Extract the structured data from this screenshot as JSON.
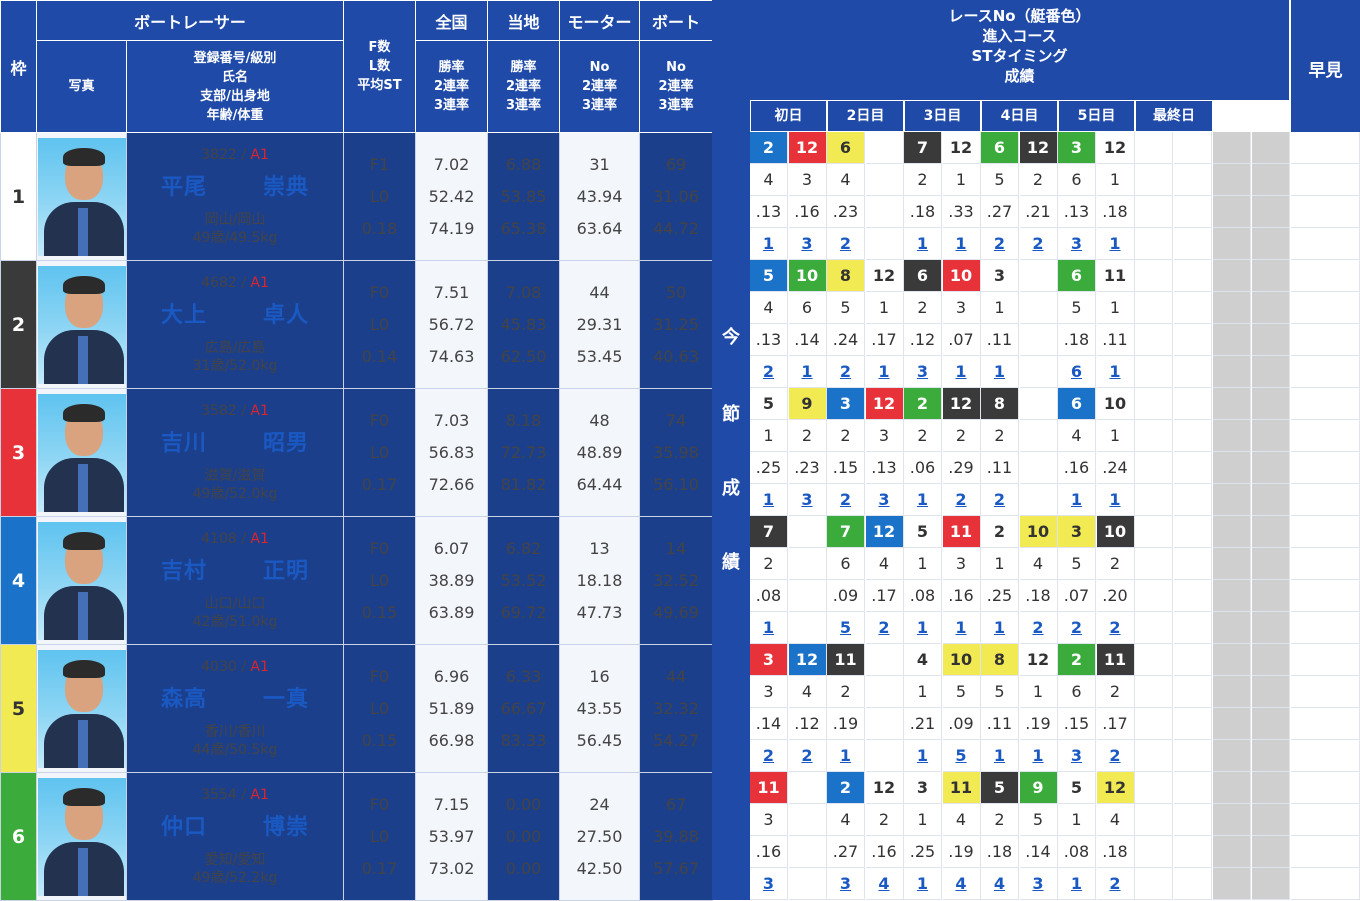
{
  "header": {
    "waku": "枠",
    "boatracer": "ボートレーサー",
    "photo": "写真",
    "info_lines": [
      "登録番号/級別",
      "氏名",
      "支部/出身地",
      "年齢/体重"
    ],
    "f_lines": [
      "F数",
      "L数",
      "平均ST"
    ],
    "zenkoku": "全国",
    "touchi": "当地",
    "motor": "モーター",
    "boat": "ボート",
    "rate_lines": [
      "勝率",
      "2連率",
      "3連率"
    ],
    "no_lines": [
      "No",
      "2連率",
      "3連率"
    ]
  },
  "side_label": [
    "今",
    "節",
    "成",
    "績"
  ],
  "results_header": {
    "lines": [
      "レースNo（艇番色）",
      "進入コース",
      "STタイミング",
      "成績"
    ],
    "days": [
      "初日",
      "2日目",
      "3日目",
      "4日目",
      "5日目",
      "最終日"
    ],
    "hayami": "早見"
  },
  "waku_colors": {
    "1": "#ffffff",
    "2": "#3a3a3a",
    "3": "#e8323a",
    "4": "#1a73c9",
    "5": "#f2ea52",
    "6": "#3bab3b"
  },
  "racers": [
    {
      "waku": "1",
      "reg": "3822 / ",
      "cls": "A1",
      "sei": "平尾",
      "mei": "崇典",
      "branch": "岡山/岡山",
      "age": "49歳/49.5kg",
      "f": "F1",
      "l": "L0",
      "st": "0.18",
      "zen": [
        "7.02",
        "52.42",
        "74.19"
      ],
      "tou": [
        "6.88",
        "53.85",
        "65.38"
      ],
      "mot": [
        "31",
        "43.94",
        "63.64"
      ],
      "boa": [
        "69",
        "31.06",
        "44.72"
      ],
      "results": [
        [
          "2",
          "4",
          ".13",
          "1",
          "c4"
        ],
        [
          "12",
          "3",
          ".16",
          "3",
          "c3"
        ],
        [
          "6",
          "4",
          ".23",
          "2",
          "c5"
        ],
        [
          "",
          "",
          "",
          "",
          ""
        ],
        [
          "7",
          "2",
          ".18",
          "1",
          "c2"
        ],
        [
          "12",
          "1",
          ".33",
          "1",
          "c1"
        ],
        [
          "6",
          "5",
          ".27",
          "2",
          "c6"
        ],
        [
          "12",
          "2",
          ".21",
          "2",
          "c2"
        ],
        [
          "3",
          "6",
          ".13",
          "3",
          "c6"
        ],
        [
          "12",
          "1",
          ".18",
          "1",
          "c1"
        ]
      ]
    },
    {
      "waku": "2",
      "reg": "4682 / ",
      "cls": "A1",
      "sei": "大上",
      "mei": "卓人",
      "branch": "広島/広島",
      "age": "31歳/52.0kg",
      "f": "F0",
      "l": "L0",
      "st": "0.14",
      "zen": [
        "7.51",
        "56.72",
        "74.63"
      ],
      "tou": [
        "7.08",
        "45.83",
        "62.50"
      ],
      "mot": [
        "44",
        "29.31",
        "53.45"
      ],
      "boa": [
        "50",
        "31.25",
        "40.63"
      ],
      "results": [
        [
          "5",
          "4",
          ".13",
          "2",
          "c4"
        ],
        [
          "10",
          "6",
          ".14",
          "1",
          "c6"
        ],
        [
          "8",
          "5",
          ".24",
          "2",
          "c5"
        ],
        [
          "12",
          "1",
          ".17",
          "1",
          "c1"
        ],
        [
          "6",
          "2",
          ".12",
          "3",
          "c2"
        ],
        [
          "10",
          "3",
          ".07",
          "1",
          "c3"
        ],
        [
          "3",
          "1",
          ".11",
          "1",
          "c1"
        ],
        [
          "",
          "",
          "",
          "",
          ""
        ],
        [
          "6",
          "5",
          ".18",
          "6",
          "c6"
        ],
        [
          "11",
          "1",
          ".11",
          "1",
          "c1"
        ]
      ]
    },
    {
      "waku": "3",
      "reg": "3582 / ",
      "cls": "A1",
      "sei": "吉川",
      "mei": "昭男",
      "branch": "滋賀/滋賀",
      "age": "49歳/52.0kg",
      "f": "F0",
      "l": "L0",
      "st": "0.17",
      "zen": [
        "7.03",
        "56.83",
        "72.66"
      ],
      "tou": [
        "8.18",
        "72.73",
        "81.82"
      ],
      "mot": [
        "48",
        "48.89",
        "64.44"
      ],
      "boa": [
        "74",
        "35.98",
        "56.10"
      ],
      "results": [
        [
          "5",
          "1",
          ".25",
          "1",
          "c1"
        ],
        [
          "9",
          "2",
          ".23",
          "3",
          "c5"
        ],
        [
          "3",
          "2",
          ".15",
          "2",
          "c4"
        ],
        [
          "12",
          "3",
          ".13",
          "3",
          "c3"
        ],
        [
          "2",
          "2",
          ".06",
          "1",
          "c6"
        ],
        [
          "12",
          "2",
          ".29",
          "2",
          "c2"
        ],
        [
          "8",
          "2",
          ".11",
          "2",
          "c2"
        ],
        [
          "",
          "",
          "",
          "",
          ""
        ],
        [
          "6",
          "4",
          ".16",
          "1",
          "c4"
        ],
        [
          "10",
          "1",
          ".24",
          "1",
          "c1"
        ]
      ]
    },
    {
      "waku": "4",
      "reg": "4108 / ",
      "cls": "A1",
      "sei": "吉村",
      "mei": "正明",
      "branch": "山口/山口",
      "age": "42歳/51.0kg",
      "f": "F0",
      "l": "L0",
      "st": "0.15",
      "zen": [
        "6.07",
        "38.89",
        "63.89"
      ],
      "tou": [
        "6.82",
        "53.52",
        "69.72"
      ],
      "mot": [
        "13",
        "18.18",
        "47.73"
      ],
      "boa": [
        "14",
        "32.52",
        "49.69"
      ],
      "results": [
        [
          "7",
          "2",
          ".08",
          "1",
          "c2"
        ],
        [
          "",
          "",
          "",
          "",
          ""
        ],
        [
          "7",
          "6",
          ".09",
          "5",
          "c6"
        ],
        [
          "12",
          "4",
          ".17",
          "2",
          "c4"
        ],
        [
          "5",
          "1",
          ".08",
          "1",
          "c1"
        ],
        [
          "11",
          "3",
          ".16",
          "1",
          "c3"
        ],
        [
          "2",
          "1",
          ".25",
          "1",
          "c1"
        ],
        [
          "10",
          "4",
          ".18",
          "2",
          "c5"
        ],
        [
          "3",
          "5",
          ".07",
          "2",
          "c5"
        ],
        [
          "10",
          "2",
          ".20",
          "2",
          "c2"
        ]
      ]
    },
    {
      "waku": "5",
      "reg": "4030 / ",
      "cls": "A1",
      "sei": "森高",
      "mei": "一真",
      "branch": "香川/香川",
      "age": "44歳/50.5kg",
      "f": "F0",
      "l": "L0",
      "st": "0.15",
      "zen": [
        "6.96",
        "51.89",
        "66.98"
      ],
      "tou": [
        "6.33",
        "66.67",
        "83.33"
      ],
      "mot": [
        "16",
        "43.55",
        "56.45"
      ],
      "boa": [
        "44",
        "32.32",
        "54.27"
      ],
      "results": [
        [
          "3",
          "3",
          ".14",
          "2",
          "c3"
        ],
        [
          "12",
          "4",
          ".12",
          "2",
          "c4"
        ],
        [
          "11",
          "2",
          ".19",
          "1",
          "c2"
        ],
        [
          "",
          "",
          "",
          "",
          ""
        ],
        [
          "4",
          "1",
          ".21",
          "1",
          "c1"
        ],
        [
          "10",
          "5",
          ".09",
          "5",
          "c5"
        ],
        [
          "8",
          "5",
          ".11",
          "1",
          "c5"
        ],
        [
          "12",
          "1",
          ".19",
          "1",
          "c1"
        ],
        [
          "2",
          "6",
          ".15",
          "3",
          "c6"
        ],
        [
          "11",
          "2",
          ".17",
          "2",
          "c2"
        ]
      ]
    },
    {
      "waku": "6",
      "reg": "3554 / ",
      "cls": "A1",
      "sei": "仲口",
      "mei": "博崇",
      "branch": "愛知/愛知",
      "age": "49歳/52.2kg",
      "f": "F0",
      "l": "L0",
      "st": "0.17",
      "zen": [
        "7.15",
        "53.97",
        "73.02"
      ],
      "tou": [
        "0.00",
        "0.00",
        "0.00"
      ],
      "mot": [
        "24",
        "27.50",
        "42.50"
      ],
      "boa": [
        "67",
        "39.88",
        "57.67"
      ],
      "results": [
        [
          "11",
          "3",
          ".16",
          "3",
          "c3"
        ],
        [
          "",
          "",
          "",
          "",
          ""
        ],
        [
          "2",
          "4",
          ".27",
          "3",
          "c4"
        ],
        [
          "12",
          "2",
          ".16",
          "4",
          "c1"
        ],
        [
          "3",
          "1",
          ".25",
          "1",
          "c1"
        ],
        [
          "11",
          "4",
          ".19",
          "4",
          "c5"
        ],
        [
          "5",
          "2",
          ".18",
          "4",
          "c2"
        ],
        [
          "9",
          "5",
          ".14",
          "3",
          "c6"
        ],
        [
          "5",
          "1",
          ".08",
          "1",
          "c1"
        ],
        [
          "12",
          "4",
          ".18",
          "2",
          "c5"
        ]
      ]
    }
  ]
}
